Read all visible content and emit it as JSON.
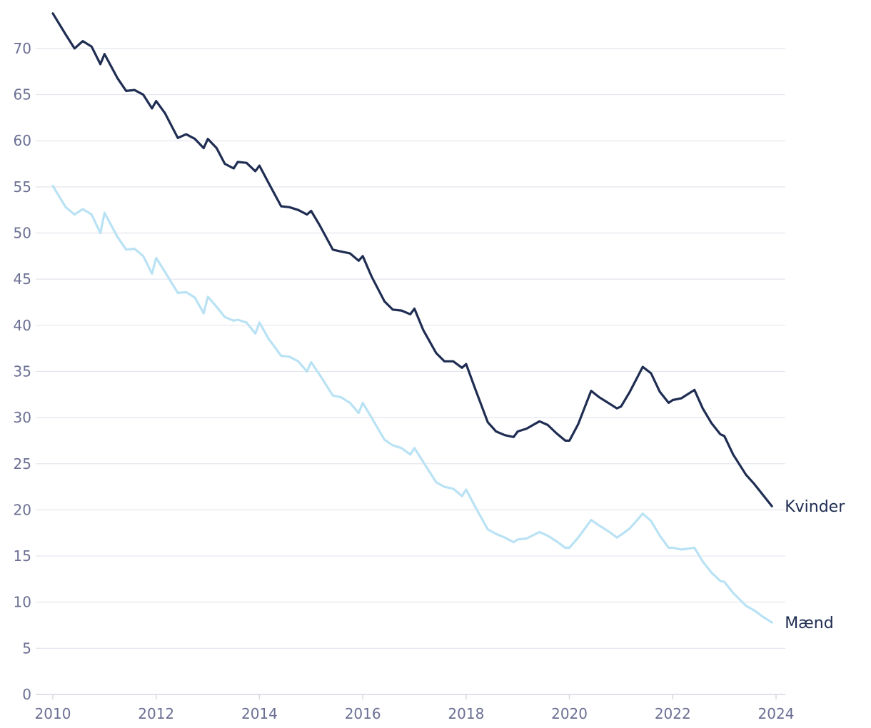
{
  "chart_data": {
    "type": "line",
    "title": "",
    "xlabel": "",
    "ylabel": "",
    "xlim": [
      2010,
      2024
    ],
    "ylim": [
      0,
      74
    ],
    "x_ticks": [
      "2010",
      "2012",
      "2014",
      "2016",
      "2018",
      "2020",
      "2022",
      "2024"
    ],
    "y_ticks": [
      "0",
      "5",
      "10",
      "15",
      "20",
      "25",
      "30",
      "35",
      "40",
      "45",
      "50",
      "55",
      "60",
      "65",
      "70"
    ],
    "grid": "horizontal",
    "legend": "end-of-line labels",
    "series": [
      {
        "name": "Kvinder",
        "color": "#1f2d52",
        "points": [
          [
            2010.0,
            73.8
          ],
          [
            2010.25,
            71.5
          ],
          [
            2010.42,
            70.0
          ],
          [
            2010.58,
            70.8
          ],
          [
            2010.75,
            70.2
          ],
          [
            2010.92,
            68.3
          ],
          [
            2011.0,
            69.4
          ],
          [
            2011.25,
            66.8
          ],
          [
            2011.42,
            65.4
          ],
          [
            2011.58,
            65.5
          ],
          [
            2011.75,
            65.0
          ],
          [
            2011.92,
            63.5
          ],
          [
            2012.0,
            64.3
          ],
          [
            2012.17,
            63.0
          ],
          [
            2012.42,
            60.3
          ],
          [
            2012.58,
            60.7
          ],
          [
            2012.75,
            60.2
          ],
          [
            2012.92,
            59.2
          ],
          [
            2013.0,
            60.2
          ],
          [
            2013.17,
            59.2
          ],
          [
            2013.33,
            57.5
          ],
          [
            2013.5,
            57.0
          ],
          [
            2013.58,
            57.7
          ],
          [
            2013.75,
            57.6
          ],
          [
            2013.92,
            56.7
          ],
          [
            2014.0,
            57.3
          ],
          [
            2014.17,
            55.5
          ],
          [
            2014.42,
            52.9
          ],
          [
            2014.58,
            52.8
          ],
          [
            2014.75,
            52.5
          ],
          [
            2014.92,
            52.0
          ],
          [
            2015.0,
            52.4
          ],
          [
            2015.17,
            50.8
          ],
          [
            2015.42,
            48.2
          ],
          [
            2015.58,
            48.0
          ],
          [
            2015.75,
            47.8
          ],
          [
            2015.92,
            47.0
          ],
          [
            2016.0,
            47.5
          ],
          [
            2016.17,
            45.3
          ],
          [
            2016.42,
            42.6
          ],
          [
            2016.58,
            41.7
          ],
          [
            2016.75,
            41.6
          ],
          [
            2016.92,
            41.2
          ],
          [
            2017.0,
            41.8
          ],
          [
            2017.17,
            39.5
          ],
          [
            2017.42,
            37.0
          ],
          [
            2017.58,
            36.1
          ],
          [
            2017.75,
            36.1
          ],
          [
            2017.92,
            35.4
          ],
          [
            2018.0,
            35.8
          ],
          [
            2018.17,
            33.2
          ],
          [
            2018.42,
            29.5
          ],
          [
            2018.58,
            28.5
          ],
          [
            2018.75,
            28.1
          ],
          [
            2018.92,
            27.9
          ],
          [
            2019.0,
            28.5
          ],
          [
            2019.17,
            28.8
          ],
          [
            2019.42,
            29.6
          ],
          [
            2019.58,
            29.2
          ],
          [
            2019.75,
            28.3
          ],
          [
            2019.92,
            27.5
          ],
          [
            2020.0,
            27.5
          ],
          [
            2020.17,
            29.3
          ],
          [
            2020.42,
            32.9
          ],
          [
            2020.58,
            32.2
          ],
          [
            2020.75,
            31.6
          ],
          [
            2020.92,
            31.0
          ],
          [
            2021.0,
            31.2
          ],
          [
            2021.17,
            32.8
          ],
          [
            2021.42,
            35.5
          ],
          [
            2021.58,
            34.8
          ],
          [
            2021.75,
            32.8
          ],
          [
            2021.92,
            31.6
          ],
          [
            2022.0,
            31.9
          ],
          [
            2022.17,
            32.1
          ],
          [
            2022.42,
            33.0
          ],
          [
            2022.58,
            31.0
          ],
          [
            2022.75,
            29.4
          ],
          [
            2022.92,
            28.2
          ],
          [
            2023.0,
            28.0
          ],
          [
            2023.17,
            26.0
          ],
          [
            2023.42,
            23.8
          ],
          [
            2023.58,
            22.8
          ],
          [
            2023.75,
            21.6
          ],
          [
            2023.92,
            20.4
          ]
        ]
      },
      {
        "name": "Mænd",
        "color": "#b9e2f4",
        "points": [
          [
            2010.0,
            55.1
          ],
          [
            2010.25,
            52.8
          ],
          [
            2010.42,
            52.0
          ],
          [
            2010.58,
            52.6
          ],
          [
            2010.75,
            52.0
          ],
          [
            2010.92,
            50.0
          ],
          [
            2011.0,
            52.2
          ],
          [
            2011.25,
            49.6
          ],
          [
            2011.42,
            48.2
          ],
          [
            2011.58,
            48.3
          ],
          [
            2011.75,
            47.5
          ],
          [
            2011.92,
            45.6
          ],
          [
            2012.0,
            47.3
          ],
          [
            2012.17,
            45.8
          ],
          [
            2012.42,
            43.5
          ],
          [
            2012.58,
            43.6
          ],
          [
            2012.75,
            43.0
          ],
          [
            2012.92,
            41.3
          ],
          [
            2013.0,
            43.1
          ],
          [
            2013.17,
            42.0
          ],
          [
            2013.33,
            40.9
          ],
          [
            2013.5,
            40.5
          ],
          [
            2013.58,
            40.6
          ],
          [
            2013.75,
            40.3
          ],
          [
            2013.92,
            39.1
          ],
          [
            2014.0,
            40.3
          ],
          [
            2014.17,
            38.6
          ],
          [
            2014.42,
            36.7
          ],
          [
            2014.58,
            36.6
          ],
          [
            2014.75,
            36.1
          ],
          [
            2014.92,
            35.0
          ],
          [
            2015.0,
            36.0
          ],
          [
            2015.17,
            34.6
          ],
          [
            2015.42,
            32.4
          ],
          [
            2015.58,
            32.2
          ],
          [
            2015.75,
            31.6
          ],
          [
            2015.92,
            30.5
          ],
          [
            2016.0,
            31.6
          ],
          [
            2016.17,
            30.0
          ],
          [
            2016.42,
            27.6
          ],
          [
            2016.58,
            27.0
          ],
          [
            2016.75,
            26.7
          ],
          [
            2016.92,
            26.0
          ],
          [
            2017.0,
            26.7
          ],
          [
            2017.17,
            25.2
          ],
          [
            2017.42,
            23.0
          ],
          [
            2017.58,
            22.5
          ],
          [
            2017.75,
            22.3
          ],
          [
            2017.92,
            21.5
          ],
          [
            2018.0,
            22.2
          ],
          [
            2018.17,
            20.4
          ],
          [
            2018.42,
            17.9
          ],
          [
            2018.58,
            17.4
          ],
          [
            2018.75,
            17.0
          ],
          [
            2018.92,
            16.5
          ],
          [
            2019.0,
            16.8
          ],
          [
            2019.17,
            16.9
          ],
          [
            2019.42,
            17.6
          ],
          [
            2019.58,
            17.2
          ],
          [
            2019.75,
            16.6
          ],
          [
            2019.92,
            15.9
          ],
          [
            2020.0,
            15.9
          ],
          [
            2020.17,
            17.0
          ],
          [
            2020.42,
            18.9
          ],
          [
            2020.58,
            18.3
          ],
          [
            2020.75,
            17.7
          ],
          [
            2020.92,
            17.0
          ],
          [
            2021.0,
            17.3
          ],
          [
            2021.17,
            18.0
          ],
          [
            2021.42,
            19.6
          ],
          [
            2021.58,
            18.8
          ],
          [
            2021.75,
            17.2
          ],
          [
            2021.92,
            15.9
          ],
          [
            2022.0,
            15.9
          ],
          [
            2022.17,
            15.7
          ],
          [
            2022.42,
            15.9
          ],
          [
            2022.58,
            14.4
          ],
          [
            2022.75,
            13.2
          ],
          [
            2022.92,
            12.3
          ],
          [
            2023.0,
            12.2
          ],
          [
            2023.17,
            11.0
          ],
          [
            2023.42,
            9.6
          ],
          [
            2023.58,
            9.1
          ],
          [
            2023.75,
            8.4
          ],
          [
            2023.92,
            7.8
          ]
        ]
      }
    ]
  }
}
